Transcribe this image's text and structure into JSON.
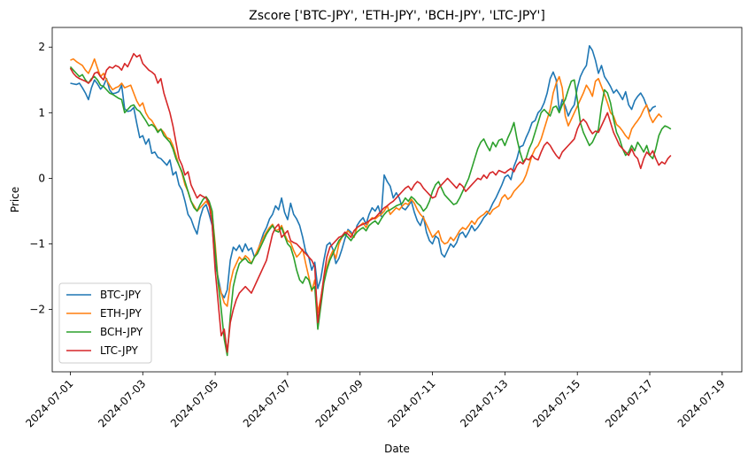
{
  "chart_data": {
    "type": "line",
    "title": "Zscore ['BTC-JPY', 'ETH-JPY', 'BCH-JPY', 'LTC-JPY']",
    "xlabel": "Date",
    "ylabel": "Price",
    "xlim": [
      "2024-06-30T12:00",
      "2024-07-19T13:00"
    ],
    "ylim": [
      -2.95,
      2.3
    ],
    "x_ticks": [
      "2024-07-01",
      "2024-07-03",
      "2024-07-05",
      "2024-07-07",
      "2024-07-09",
      "2024-07-11",
      "2024-07-13",
      "2024-07-15",
      "2024-07-17",
      "2024-07-19"
    ],
    "y_ticks": [
      -2,
      -1,
      0,
      1,
      2
    ],
    "y_tick_labels": [
      "−2",
      "−1",
      "0",
      "1",
      "2"
    ],
    "grid": false,
    "legend": "lower-left",
    "x_start": "2024-07-01T00:00",
    "x_step_hours": 2,
    "series": [
      {
        "name": "BTC-JPY",
        "color": "#1f77b4",
        "values": [
          1.45,
          1.44,
          1.43,
          1.45,
          1.38,
          1.3,
          1.2,
          1.38,
          1.5,
          1.44,
          1.36,
          1.41,
          1.52,
          1.35,
          1.29,
          1.3,
          1.32,
          1.42,
          1.06,
          1.02,
          1.03,
          1.08,
          0.84,
          0.62,
          0.65,
          0.52,
          0.6,
          0.38,
          0.4,
          0.32,
          0.3,
          0.25,
          0.2,
          0.28,
          0.05,
          0.1,
          -0.1,
          -0.18,
          -0.35,
          -0.55,
          -0.62,
          -0.75,
          -0.85,
          -0.6,
          -0.45,
          -0.4,
          -0.55,
          -0.72,
          -1.3,
          -1.52,
          -1.75,
          -1.82,
          -1.7,
          -1.25,
          -1.05,
          -1.1,
          -1.02,
          -1.12,
          -1.0,
          -1.1,
          -1.06,
          -1.2,
          -1.12,
          -0.98,
          -0.84,
          -0.75,
          -0.62,
          -0.55,
          -0.42,
          -0.48,
          -0.3,
          -0.52,
          -0.63,
          -0.38,
          -0.55,
          -0.62,
          -0.72,
          -0.9,
          -1.12,
          -1.2,
          -1.4,
          -1.28,
          -1.68,
          -1.53,
          -1.25,
          -1.02,
          -0.98,
          -1.08,
          -1.3,
          -1.22,
          -1.08,
          -0.92,
          -0.78,
          -0.82,
          -0.9,
          -0.72,
          -0.65,
          -0.6,
          -0.7,
          -0.55,
          -0.45,
          -0.5,
          -0.42,
          -0.58,
          0.05,
          -0.05,
          -0.12,
          -0.3,
          -0.22,
          -0.3,
          -0.45,
          -0.48,
          -0.42,
          -0.35,
          -0.52,
          -0.65,
          -0.72,
          -0.58,
          -0.82,
          -0.95,
          -1.0,
          -0.88,
          -0.92,
          -1.15,
          -1.2,
          -1.1,
          -1.0,
          -1.05,
          -0.98,
          -0.85,
          -0.82,
          -0.9,
          -0.82,
          -0.72,
          -0.8,
          -0.75,
          -0.68,
          -0.6,
          -0.55,
          -0.48,
          -0.38,
          -0.3,
          -0.2,
          -0.1,
          0.02,
          0.05,
          -0.02,
          0.18,
          0.3,
          0.48,
          0.5,
          0.62,
          0.72,
          0.85,
          0.88,
          1.0,
          1.05,
          1.15,
          1.3,
          1.52,
          1.62,
          1.5,
          1.02,
          1.2,
          1.1,
          0.95,
          1.05,
          1.12,
          1.38,
          1.55,
          1.65,
          1.72,
          2.02,
          1.95,
          1.8,
          1.6,
          1.72,
          1.55,
          1.48,
          1.4,
          1.3,
          1.35,
          1.28,
          1.2,
          1.32,
          1.12,
          1.05,
          1.18,
          1.25,
          1.3,
          1.22,
          1.1,
          1.02,
          1.08,
          1.1
        ]
      },
      {
        "name": "ETH-JPY",
        "color": "#ff7f0e",
        "values": [
          1.8,
          1.82,
          1.78,
          1.75,
          1.72,
          1.65,
          1.6,
          1.7,
          1.82,
          1.68,
          1.55,
          1.6,
          1.5,
          1.42,
          1.35,
          1.38,
          1.4,
          1.45,
          1.38,
          1.4,
          1.42,
          1.3,
          1.18,
          1.1,
          1.15,
          1.0,
          0.92,
          0.88,
          0.8,
          0.72,
          0.75,
          0.7,
          0.62,
          0.6,
          0.5,
          0.35,
          0.2,
          0.08,
          -0.1,
          -0.2,
          -0.35,
          -0.42,
          -0.5,
          -0.45,
          -0.4,
          -0.35,
          -0.42,
          -0.55,
          -1.0,
          -1.6,
          -1.75,
          -1.9,
          -1.95,
          -1.6,
          -1.4,
          -1.3,
          -1.2,
          -1.25,
          -1.18,
          -1.22,
          -1.3,
          -1.2,
          -1.1,
          -1.0,
          -0.9,
          -0.82,
          -0.75,
          -0.7,
          -0.8,
          -0.78,
          -0.72,
          -0.85,
          -0.95,
          -0.98,
          -1.1,
          -1.2,
          -1.15,
          -1.08,
          -1.3,
          -1.5,
          -1.72,
          -1.55,
          -2.05,
          -1.82,
          -1.55,
          -1.35,
          -1.2,
          -1.1,
          -1.22,
          -1.0,
          -0.9,
          -0.85,
          -0.8,
          -0.85,
          -0.9,
          -0.75,
          -0.72,
          -0.68,
          -0.75,
          -0.65,
          -0.6,
          -0.62,
          -0.58,
          -0.55,
          -0.5,
          -0.42,
          -0.55,
          -0.5,
          -0.45,
          -0.48,
          -0.42,
          -0.38,
          -0.4,
          -0.32,
          -0.38,
          -0.48,
          -0.55,
          -0.6,
          -0.7,
          -0.8,
          -0.9,
          -0.85,
          -0.8,
          -0.95,
          -1.0,
          -0.98,
          -0.9,
          -0.95,
          -0.88,
          -0.8,
          -0.75,
          -0.78,
          -0.72,
          -0.65,
          -0.7,
          -0.62,
          -0.58,
          -0.55,
          -0.5,
          -0.55,
          -0.48,
          -0.45,
          -0.42,
          -0.3,
          -0.25,
          -0.32,
          -0.28,
          -0.2,
          -0.15,
          -0.1,
          -0.05,
          0.05,
          0.2,
          0.35,
          0.45,
          0.5,
          0.6,
          0.75,
          0.9,
          1.05,
          1.3,
          1.45,
          1.55,
          1.38,
          0.95,
          0.8,
          0.9,
          1.0,
          1.1,
          1.2,
          1.3,
          1.42,
          1.35,
          1.25,
          1.48,
          1.52,
          1.4,
          1.28,
          1.15,
          1.0,
          0.95,
          0.82,
          0.78,
          0.72,
          0.65,
          0.6,
          0.75,
          0.82,
          0.88,
          0.95,
          1.05,
          1.12,
          0.95,
          0.85,
          0.92,
          0.98,
          0.93
        ]
      },
      {
        "name": "BCH-JPY",
        "color": "#2ca02c",
        "values": [
          1.7,
          1.65,
          1.6,
          1.55,
          1.58,
          1.5,
          1.45,
          1.52,
          1.55,
          1.5,
          1.42,
          1.4,
          1.35,
          1.3,
          1.28,
          1.25,
          1.22,
          1.2,
          1.0,
          1.05,
          1.1,
          1.12,
          1.05,
          1.02,
          0.95,
          0.88,
          0.8,
          0.82,
          0.78,
          0.7,
          0.75,
          0.65,
          0.6,
          0.55,
          0.45,
          0.3,
          0.2,
          0.1,
          -0.05,
          -0.2,
          -0.35,
          -0.45,
          -0.5,
          -0.4,
          -0.32,
          -0.28,
          -0.35,
          -0.5,
          -1.1,
          -1.6,
          -2.0,
          -2.45,
          -2.7,
          -2.1,
          -1.65,
          -1.45,
          -1.3,
          -1.25,
          -1.22,
          -1.28,
          -1.3,
          -1.2,
          -1.15,
          -1.05,
          -0.95,
          -0.85,
          -0.78,
          -0.72,
          -0.8,
          -0.82,
          -0.75,
          -0.88,
          -1.0,
          -1.05,
          -1.2,
          -1.4,
          -1.55,
          -1.6,
          -1.5,
          -1.55,
          -1.7,
          -1.65,
          -2.3,
          -1.95,
          -1.6,
          -1.4,
          -1.25,
          -1.15,
          -1.05,
          -0.95,
          -0.9,
          -0.85,
          -0.9,
          -0.95,
          -0.88,
          -0.82,
          -0.78,
          -0.75,
          -0.8,
          -0.72,
          -0.68,
          -0.65,
          -0.7,
          -0.62,
          -0.55,
          -0.5,
          -0.48,
          -0.45,
          -0.42,
          -0.4,
          -0.38,
          -0.3,
          -0.35,
          -0.28,
          -0.32,
          -0.38,
          -0.42,
          -0.5,
          -0.45,
          -0.35,
          -0.2,
          -0.1,
          -0.05,
          -0.15,
          -0.25,
          -0.3,
          -0.35,
          -0.4,
          -0.38,
          -0.3,
          -0.2,
          -0.1,
          0.0,
          0.15,
          0.3,
          0.45,
          0.55,
          0.6,
          0.5,
          0.42,
          0.55,
          0.48,
          0.58,
          0.6,
          0.5,
          0.62,
          0.72,
          0.85,
          0.6,
          0.4,
          0.25,
          0.3,
          0.45,
          0.55,
          0.7,
          0.85,
          1.0,
          1.05,
          1.0,
          0.95,
          1.08,
          1.1,
          1.0,
          1.12,
          1.2,
          1.35,
          1.48,
          1.5,
          1.2,
          0.85,
          0.7,
          0.6,
          0.5,
          0.55,
          0.65,
          0.75,
          1.1,
          1.35,
          1.3,
          1.15,
          0.9,
          0.7,
          0.6,
          0.45,
          0.35,
          0.4,
          0.5,
          0.42,
          0.55,
          0.48,
          0.4,
          0.5,
          0.35,
          0.3,
          0.45,
          0.65,
          0.75,
          0.8,
          0.78,
          0.75
        ]
      },
      {
        "name": "LTC-JPY",
        "color": "#d62728",
        "values": [
          1.68,
          1.6,
          1.55,
          1.52,
          1.5,
          1.48,
          1.45,
          1.5,
          1.6,
          1.62,
          1.55,
          1.5,
          1.65,
          1.7,
          1.68,
          1.72,
          1.7,
          1.65,
          1.75,
          1.7,
          1.8,
          1.9,
          1.85,
          1.88,
          1.75,
          1.7,
          1.65,
          1.62,
          1.58,
          1.45,
          1.52,
          1.3,
          1.15,
          1.0,
          0.8,
          0.55,
          0.3,
          0.2,
          0.05,
          0.1,
          -0.1,
          -0.2,
          -0.3,
          -0.25,
          -0.28,
          -0.3,
          -0.4,
          -0.7,
          -1.4,
          -1.9,
          -2.4,
          -2.3,
          -2.65,
          -2.2,
          -2.0,
          -1.85,
          -1.75,
          -1.7,
          -1.65,
          -1.7,
          -1.75,
          -1.65,
          -1.55,
          -1.45,
          -1.35,
          -1.25,
          -1.05,
          -0.85,
          -0.75,
          -0.7,
          -0.9,
          -0.85,
          -0.8,
          -0.95,
          -0.98,
          -1.0,
          -1.05,
          -1.1,
          -1.15,
          -1.2,
          -1.25,
          -1.35,
          -2.2,
          -1.85,
          -1.5,
          -1.2,
          -1.05,
          -1.0,
          -0.95,
          -0.9,
          -0.88,
          -0.82,
          -0.85,
          -0.9,
          -0.8,
          -0.75,
          -0.72,
          -0.7,
          -0.68,
          -0.65,
          -0.62,
          -0.6,
          -0.55,
          -0.5,
          -0.45,
          -0.42,
          -0.38,
          -0.35,
          -0.3,
          -0.25,
          -0.2,
          -0.15,
          -0.12,
          -0.18,
          -0.1,
          -0.05,
          -0.08,
          -0.15,
          -0.2,
          -0.25,
          -0.3,
          -0.28,
          -0.15,
          -0.1,
          -0.05,
          0.0,
          -0.05,
          -0.1,
          -0.15,
          -0.08,
          -0.12,
          -0.2,
          -0.15,
          -0.1,
          -0.05,
          0.0,
          -0.02,
          0.05,
          0.0,
          0.08,
          0.1,
          0.05,
          0.12,
          0.1,
          0.08,
          0.12,
          0.15,
          0.1,
          0.2,
          0.25,
          0.22,
          0.3,
          0.28,
          0.35,
          0.3,
          0.28,
          0.4,
          0.5,
          0.55,
          0.5,
          0.42,
          0.35,
          0.3,
          0.4,
          0.45,
          0.5,
          0.55,
          0.6,
          0.75,
          0.85,
          0.9,
          0.85,
          0.75,
          0.68,
          0.72,
          0.7,
          0.8,
          0.9,
          1.0,
          0.85,
          0.7,
          0.6,
          0.5,
          0.45,
          0.4,
          0.35,
          0.45,
          0.35,
          0.3,
          0.15,
          0.3,
          0.4,
          0.35,
          0.42,
          0.3,
          0.2,
          0.25,
          0.22,
          0.3,
          0.35
        ]
      }
    ]
  }
}
